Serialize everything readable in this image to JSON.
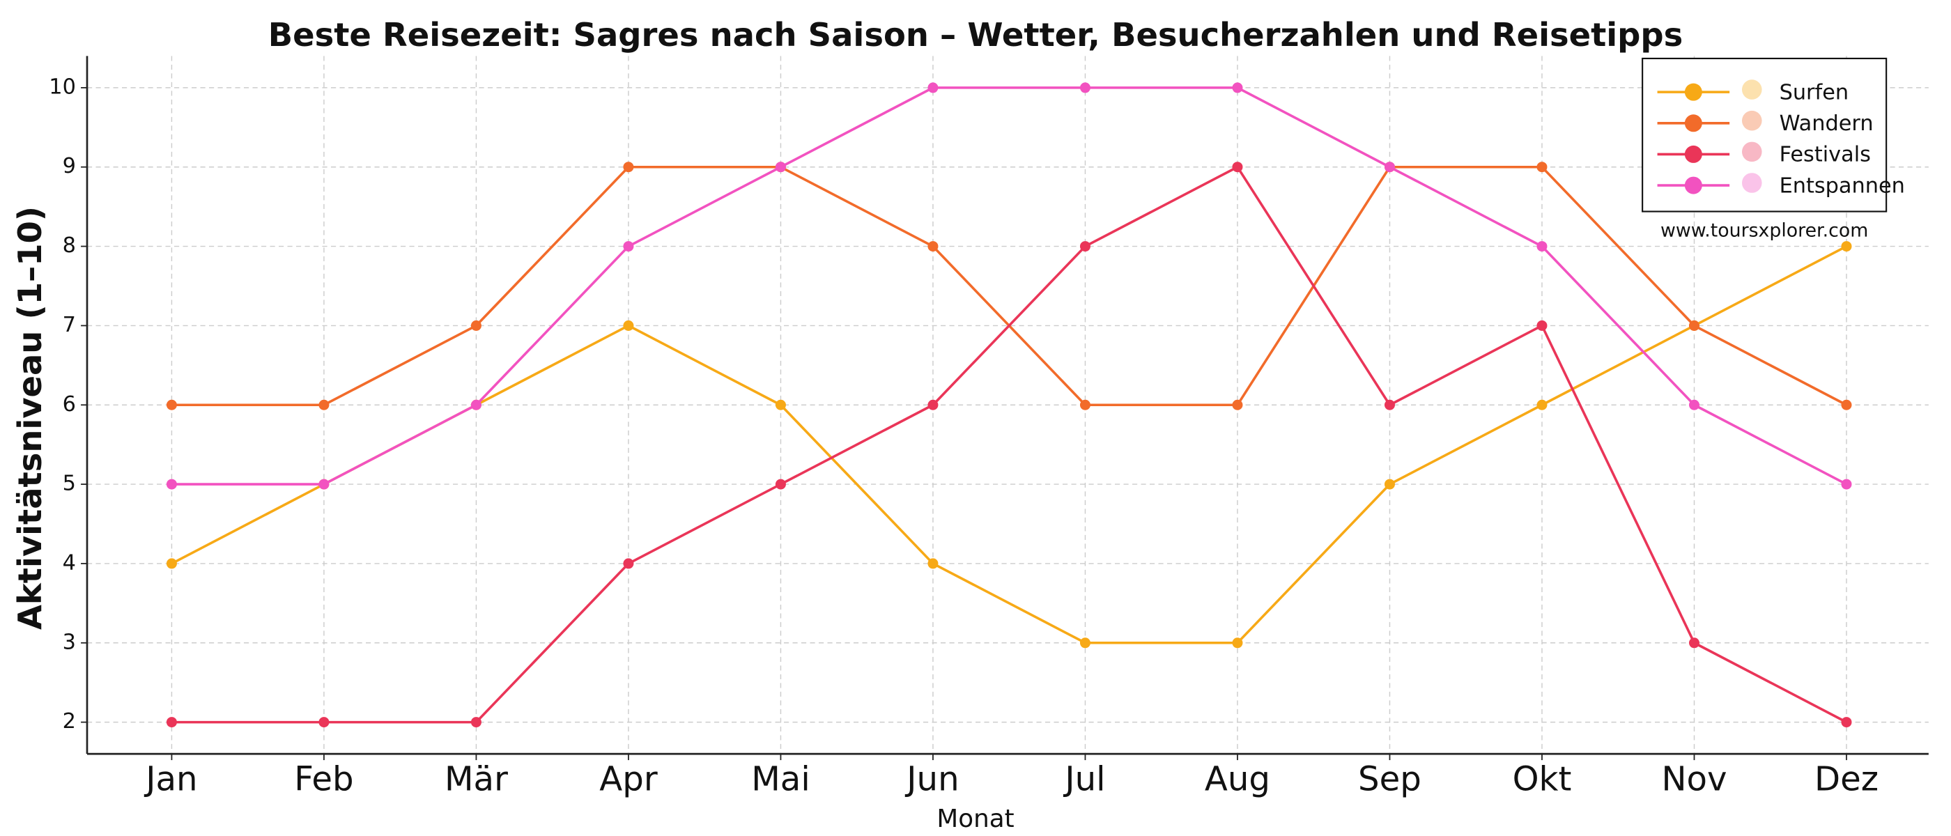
{
  "chart_data": {
    "type": "line",
    "title": "Beste Reisezeit: Sagres nach Saison – Wetter, Besucherzahlen und Reisetipps",
    "x_label": "Monat",
    "y_label": "Aktivitätsniveau (1–10)",
    "watermark": "www.toursxplorer.com",
    "categories": [
      "Jan",
      "Feb",
      "Mär",
      "Apr",
      "Mai",
      "Jun",
      "Jul",
      "Aug",
      "Sep",
      "Okt",
      "Nov",
      "Dez"
    ],
    "series": [
      {
        "name": "Surfen",
        "color": "#f7a916",
        "values": [
          4,
          5,
          6,
          7,
          6,
          4,
          3,
          3,
          5,
          6,
          7,
          8
        ]
      },
      {
        "name": "Wandern",
        "color": "#f26b2a",
        "values": [
          6,
          6,
          7,
          9,
          9,
          8,
          6,
          6,
          9,
          9,
          7,
          6
        ]
      },
      {
        "name": "Festivals",
        "color": "#ea3558",
        "values": [
          2,
          2,
          2,
          4,
          5,
          6,
          8,
          9,
          6,
          7,
          3,
          2
        ]
      },
      {
        "name": "Entspannen",
        "color": "#f252c0",
        "values": [
          5,
          5,
          6,
          8,
          9,
          10,
          10,
          10,
          9,
          8,
          6,
          5
        ]
      }
    ],
    "ylim": [
      1.6,
      10.4
    ],
    "yticks": [
      2,
      3,
      4,
      5,
      6,
      7,
      8,
      9,
      10
    ],
    "grid": true,
    "legend": "upper right"
  }
}
